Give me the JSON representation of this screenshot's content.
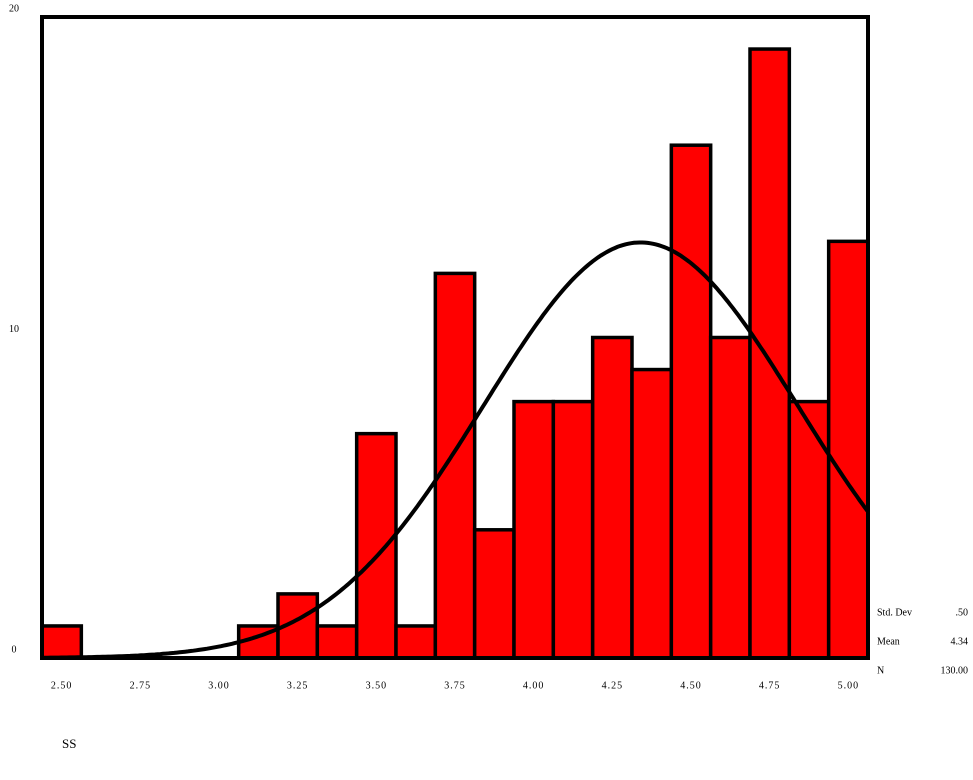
{
  "chart_data": {
    "type": "histogram",
    "x_label": "SS",
    "bins": [
      2.4375,
      2.5625,
      2.6875,
      2.8125,
      2.9375,
      3.0625,
      3.1875,
      3.3125,
      3.4375,
      3.5625,
      3.6875,
      3.8125,
      3.9375,
      4.0625,
      4.1875,
      4.3125,
      4.4375,
      4.5625,
      4.6875,
      4.8125,
      4.9375,
      5.0625
    ],
    "values": [
      1,
      0,
      0,
      0,
      0,
      1,
      2,
      1,
      7,
      1,
      12,
      4,
      8,
      8,
      10,
      9,
      16,
      10,
      19,
      8,
      13
    ],
    "color": "#ff0000",
    "xlim": [
      2.4375,
      5.0625
    ],
    "ylim": [
      0,
      20
    ],
    "xticks": [
      {
        "value": 2.5,
        "label": "2.50"
      },
      {
        "value": 2.75,
        "label": "2.75"
      },
      {
        "value": 3.0,
        "label": "3.00"
      },
      {
        "value": 3.25,
        "label": "3.25"
      },
      {
        "value": 3.5,
        "label": "3.50"
      },
      {
        "value": 3.75,
        "label": "3.75"
      },
      {
        "value": 4.0,
        "label": "4.00"
      },
      {
        "value": 4.25,
        "label": "4.25"
      },
      {
        "value": 4.5,
        "label": "4.50"
      },
      {
        "value": 4.75,
        "label": "4.75"
      },
      {
        "value": 5.0,
        "label": "5.00"
      }
    ],
    "yticks": [
      0,
      10,
      20
    ],
    "stats": [
      {
        "name": "Std. Dev",
        "value": 0.5,
        "label": ".50"
      },
      {
        "name": "Mean",
        "value": 4.34,
        "label": "4.34"
      },
      {
        "name": "N",
        "value": 130,
        "label": "130.00"
      }
    ]
  }
}
